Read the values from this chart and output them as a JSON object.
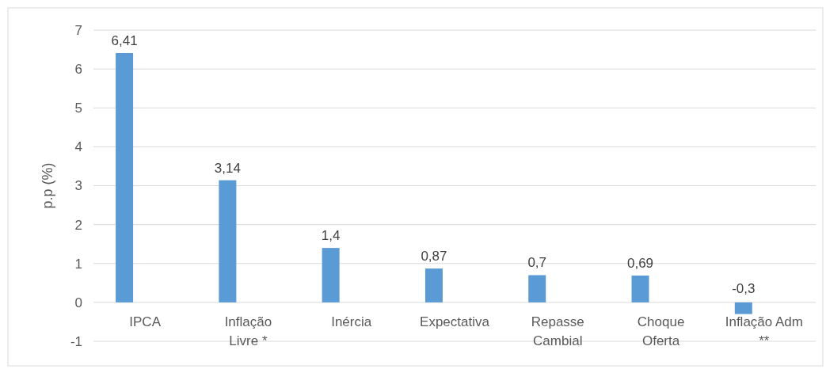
{
  "chart_data": {
    "type": "bar",
    "ylabel": "p.p (%)",
    "categories": [
      "IPCA",
      "Inflação Livre *",
      "Inércia",
      "Expectativa",
      "Repasse Cambial",
      "Choque Oferta",
      "Inflação Adm **"
    ],
    "values": [
      6.41,
      3.14,
      1.4,
      0.87,
      0.7,
      0.69,
      -0.3
    ],
    "color": "#5b9bd5",
    "ylim": [
      -1,
      7
    ],
    "yticks": [
      -1,
      0,
      1,
      2,
      3,
      4,
      5,
      6,
      7
    ],
    "value_labels": [
      "6,41",
      "3,14",
      "1,4",
      "0,87",
      "0,7",
      "0,69",
      "-0,3"
    ],
    "grid": "y"
  }
}
